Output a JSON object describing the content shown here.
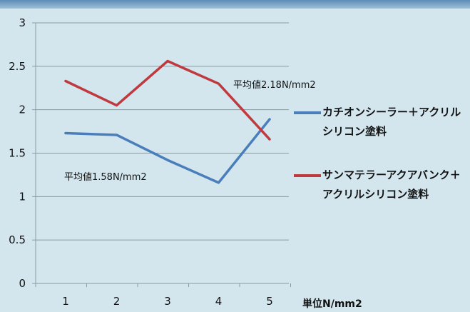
{
  "chart_data": {
    "type": "line",
    "categories": [
      "1",
      "2",
      "3",
      "4",
      "5"
    ],
    "series": [
      {
        "name": "カチオンシーラー＋アクリルシリコン塗料",
        "color": "#4a7ebb",
        "values": [
          1.73,
          1.71,
          1.42,
          1.16,
          1.89
        ]
      },
      {
        "name": "サンマテラーアクアバンク＋アクリルシリコン塗料",
        "color": "#c0393f",
        "values": [
          2.33,
          2.05,
          2.56,
          2.3,
          1.66
        ]
      }
    ],
    "ylim": [
      0,
      3
    ],
    "yticks": [
      "0",
      "0.5",
      "1",
      "1.5",
      "2",
      "2.5",
      "3"
    ],
    "grid": true,
    "legend_position": "right",
    "unit_label": "単位N/mm2",
    "annotations": [
      {
        "text": "平均値2.18N/mm2",
        "series": 1
      },
      {
        "text": "平均値1.58N/mm2",
        "series": 0
      }
    ]
  }
}
